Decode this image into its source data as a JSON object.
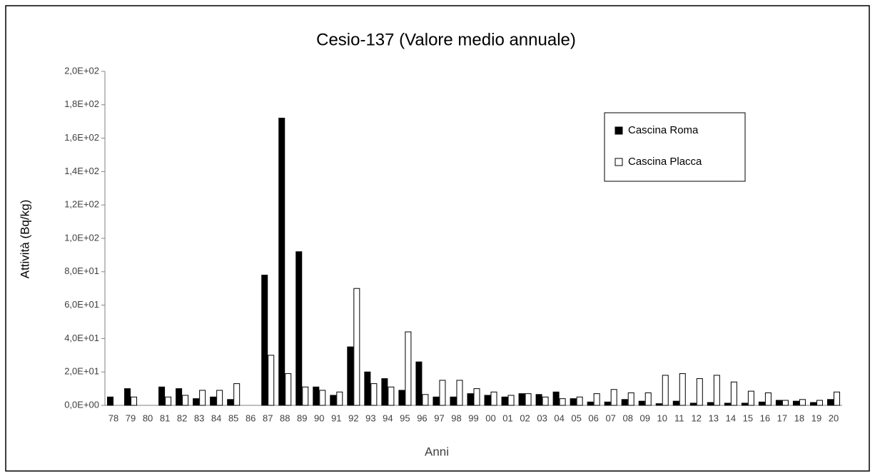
{
  "chart_data": {
    "type": "bar",
    "title": "Cesio-137 (Valore medio annuale)",
    "x_label": "Anni",
    "y_label": "Attività (Bq/kg)",
    "categories": [
      "78",
      "79",
      "80",
      "81",
      "82",
      "83",
      "84",
      "85",
      "86",
      "87",
      "88",
      "89",
      "90",
      "91",
      "92",
      "93",
      "94",
      "95",
      "96",
      "97",
      "98",
      "99",
      "00",
      "01",
      "02",
      "03",
      "04",
      "05",
      "06",
      "07",
      "08",
      "09",
      "10",
      "11",
      "12",
      "13",
      "14",
      "15",
      "16",
      "17",
      "18",
      "19",
      "20"
    ],
    "series": [
      {
        "name": "Cascina Roma",
        "color": "#000000",
        "values": [
          5,
          10,
          null,
          11,
          10,
          4,
          5,
          3.5,
          null,
          78,
          172,
          92,
          11,
          6,
          35,
          20,
          16,
          9,
          26,
          5,
          5,
          7,
          6,
          5,
          7,
          6.5,
          8,
          4,
          2,
          2,
          3.5,
          2.5,
          1,
          2.5,
          1.3,
          1.7,
          1.3,
          1.3,
          2,
          3,
          2.5,
          1.7,
          3.5
        ]
      },
      {
        "name": "Cascina Placca",
        "color": "#ffffff",
        "values": [
          null,
          5,
          null,
          5,
          6,
          9,
          9,
          13,
          null,
          30,
          19,
          11,
          9,
          8,
          70,
          13,
          11,
          44,
          6.5,
          15,
          15,
          10,
          8,
          6,
          7,
          5,
          4,
          5,
          7,
          9.5,
          7.5,
          7.5,
          18,
          19,
          16,
          18,
          14,
          8.5,
          7.5,
          3,
          3.5,
          3,
          8
        ]
      }
    ],
    "ylim": [
      0,
      200
    ],
    "yticks": [
      {
        "value": 0,
        "label": "0,0E+00"
      },
      {
        "value": 20,
        "label": "2,0E+01"
      },
      {
        "value": 40,
        "label": "4,0E+01"
      },
      {
        "value": 60,
        "label": "6,0E+01"
      },
      {
        "value": 80,
        "label": "8,0E+01"
      },
      {
        "value": 100,
        "label": "1,0E+02"
      },
      {
        "value": 120,
        "label": "1,2E+02"
      },
      {
        "value": 140,
        "label": "1,4E+02"
      },
      {
        "value": 160,
        "label": "1,6E+02"
      },
      {
        "value": 180,
        "label": "1,8E+02"
      },
      {
        "value": 200,
        "label": "2,0E+02"
      }
    ],
    "grid": false,
    "legend": "upper right"
  }
}
